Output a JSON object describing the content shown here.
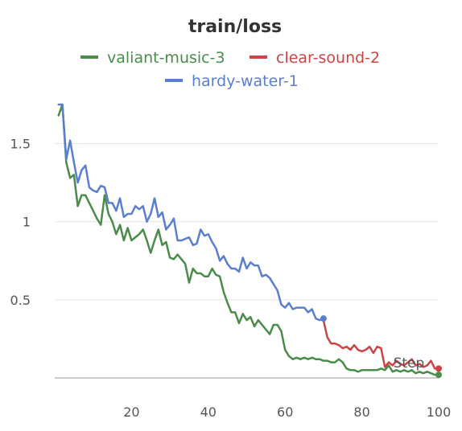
{
  "chart_data": {
    "type": "line",
    "title": "train/loss",
    "xlabel": "Step",
    "ylabel": "",
    "xlim": [
      0,
      100
    ],
    "ylim": [
      0,
      1.75
    ],
    "xticks": [
      "20",
      "40",
      "60",
      "80",
      "100"
    ],
    "yticks": [
      "0.5",
      "1",
      "1.5"
    ],
    "legend": [
      "valiant-music-3",
      "clear-sound-2",
      "hardy-water-1"
    ],
    "series": [
      {
        "name": "valiant-music-3",
        "color": "#4a8c4a",
        "x": [
          1,
          2,
          3,
          4,
          5,
          6,
          7,
          8,
          9,
          10,
          11,
          12,
          13,
          14,
          15,
          16,
          17,
          18,
          19,
          20,
          21,
          22,
          23,
          24,
          25,
          26,
          27,
          28,
          29,
          30,
          31,
          32,
          33,
          34,
          35,
          36,
          37,
          38,
          39,
          40,
          41,
          42,
          43,
          44,
          45,
          46,
          47,
          48,
          49,
          50,
          51,
          52,
          53,
          54,
          55,
          56,
          57,
          58,
          59,
          60,
          61,
          62,
          63,
          64,
          65,
          66,
          67,
          68,
          69,
          70,
          71,
          72,
          73,
          74,
          75,
          76,
          77,
          78,
          79,
          80,
          81,
          82,
          83,
          84,
          85,
          86,
          87,
          88,
          89,
          90,
          91,
          92,
          93,
          94,
          95,
          96,
          97,
          98,
          99,
          100
        ],
        "values": [
          1.68,
          1.75,
          1.38,
          1.28,
          1.3,
          1.1,
          1.17,
          1.17,
          1.12,
          1.07,
          1.02,
          0.98,
          1.17,
          1.05,
          1.0,
          0.92,
          0.98,
          0.88,
          0.96,
          0.88,
          0.9,
          0.92,
          0.95,
          0.88,
          0.8,
          0.88,
          0.95,
          0.85,
          0.87,
          0.77,
          0.76,
          0.79,
          0.76,
          0.73,
          0.61,
          0.7,
          0.67,
          0.67,
          0.65,
          0.65,
          0.7,
          0.66,
          0.65,
          0.55,
          0.48,
          0.42,
          0.42,
          0.35,
          0.41,
          0.37,
          0.39,
          0.33,
          0.37,
          0.34,
          0.31,
          0.28,
          0.34,
          0.34,
          0.3,
          0.18,
          0.14,
          0.12,
          0.13,
          0.12,
          0.13,
          0.12,
          0.13,
          0.12,
          0.12,
          0.11,
          0.11,
          0.1,
          0.1,
          0.12,
          0.1,
          0.06,
          0.05,
          0.05,
          0.04,
          0.05,
          0.05,
          0.05,
          0.05,
          0.05,
          0.06,
          0.05,
          0.08,
          0.04,
          0.05,
          0.04,
          0.05,
          0.04,
          0.05,
          0.03,
          0.04,
          0.03,
          0.04,
          0.03,
          0.02,
          0.02
        ]
      },
      {
        "name": "clear-sound-2",
        "color": "#cc4444",
        "x": [
          70,
          71,
          72,
          73,
          74,
          75,
          76,
          77,
          78,
          79,
          80,
          81,
          82,
          83,
          84,
          85,
          86,
          87,
          88,
          89,
          90,
          91,
          92,
          93,
          94,
          95,
          96,
          97,
          98,
          99,
          100
        ],
        "values": [
          0.37,
          0.26,
          0.22,
          0.22,
          0.21,
          0.19,
          0.2,
          0.18,
          0.21,
          0.18,
          0.17,
          0.18,
          0.2,
          0.16,
          0.2,
          0.19,
          0.07,
          0.1,
          0.08,
          0.11,
          0.09,
          0.08,
          0.1,
          0.12,
          0.08,
          0.09,
          0.07,
          0.08,
          0.11,
          0.06,
          0.06
        ]
      },
      {
        "name": "hardy-water-1",
        "color": "#5a7fd0",
        "x": [
          1,
          2,
          3,
          4,
          5,
          6,
          7,
          8,
          9,
          10,
          11,
          12,
          13,
          14,
          15,
          16,
          17,
          18,
          19,
          20,
          21,
          22,
          23,
          24,
          25,
          26,
          27,
          28,
          29,
          30,
          31,
          32,
          33,
          34,
          35,
          36,
          37,
          38,
          39,
          40,
          41,
          42,
          43,
          44,
          45,
          46,
          47,
          48,
          49,
          50,
          51,
          52,
          53,
          54,
          55,
          56,
          57,
          58,
          59,
          60,
          61,
          62,
          63,
          64,
          65,
          66,
          67,
          68,
          69,
          70
        ],
        "values": [
          1.75,
          1.75,
          1.4,
          1.52,
          1.38,
          1.25,
          1.33,
          1.36,
          1.22,
          1.2,
          1.19,
          1.23,
          1.22,
          1.12,
          1.12,
          1.07,
          1.15,
          1.03,
          1.05,
          1.05,
          1.1,
          1.08,
          1.1,
          1.0,
          1.05,
          1.15,
          1.03,
          1.06,
          0.95,
          0.98,
          1.02,
          0.88,
          0.88,
          0.89,
          0.9,
          0.85,
          0.86,
          0.95,
          0.91,
          0.92,
          0.87,
          0.83,
          0.75,
          0.78,
          0.73,
          0.7,
          0.7,
          0.68,
          0.77,
          0.7,
          0.74,
          0.72,
          0.72,
          0.65,
          0.66,
          0.64,
          0.6,
          0.56,
          0.47,
          0.45,
          0.48,
          0.44,
          0.45,
          0.45,
          0.45,
          0.42,
          0.44,
          0.38,
          0.37,
          0.38
        ]
      }
    ]
  }
}
